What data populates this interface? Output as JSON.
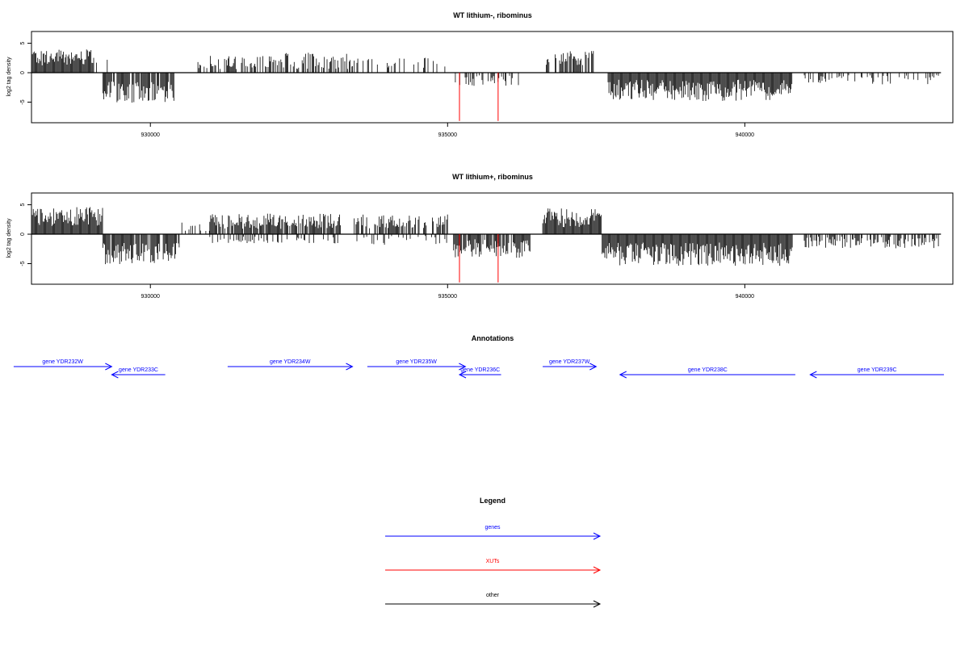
{
  "chart_data": [
    {
      "type": "bar",
      "title": "WT lithium-, ribominus",
      "ylabel": "log2 tag density",
      "xlim": [
        928000,
        943500
      ],
      "ylim": [
        -8.5,
        7
      ],
      "x_ticks": [
        930000,
        935000,
        940000
      ],
      "x_tick_labels": [
        "930000",
        "935000",
        "940000"
      ],
      "y_ticks": [
        -5,
        0,
        5
      ],
      "y_tick_labels": [
        "-5",
        "0",
        "5"
      ],
      "base_color": "#000000",
      "segments": [
        {
          "x0": 928000,
          "x1": 929050,
          "density": 1.0,
          "sign": 1,
          "mean": 2.6,
          "amp": 1.4
        },
        {
          "x0": 929050,
          "x1": 929300,
          "density": 0.3,
          "sign": 1,
          "mean": 1.8,
          "amp": 0.8
        },
        {
          "x0": 929200,
          "x1": 930400,
          "density": 0.9,
          "sign": -1,
          "mean": 3.3,
          "amp": 1.8
        },
        {
          "x0": 930800,
          "x1": 932000,
          "density": 0.45,
          "sign": 1,
          "mean": 1.8,
          "amp": 1.2
        },
        {
          "x0": 932000,
          "x1": 933400,
          "density": 0.5,
          "sign": 1,
          "mean": 2.0,
          "amp": 1.4
        },
        {
          "x0": 933400,
          "x1": 935000,
          "density": 0.25,
          "sign": 1,
          "mean": 1.6,
          "amp": 1.0
        },
        {
          "x0": 935100,
          "x1": 936200,
          "density": 0.35,
          "sign": -1,
          "mean": 1.4,
          "amp": 1.0
        },
        {
          "x0": 936600,
          "x1": 937500,
          "density": 0.7,
          "sign": 1,
          "mean": 2.5,
          "amp": 1.2
        },
        {
          "x0": 937700,
          "x1": 940800,
          "density": 1.0,
          "sign": -1,
          "mean": 3.0,
          "amp": 1.8
        },
        {
          "x0": 941000,
          "x1": 943300,
          "density": 0.3,
          "sign": -1,
          "mean": 1.2,
          "amp": 0.8
        }
      ],
      "red_marks": [
        {
          "x": 935200,
          "y": -8.2
        },
        {
          "x": 935850,
          "y": -8.2
        }
      ]
    },
    {
      "type": "bar",
      "title": "WT lithium+, ribominus",
      "ylabel": "log2 tag density",
      "xlim": [
        928000,
        943500
      ],
      "ylim": [
        -8.5,
        7
      ],
      "x_ticks": [
        930000,
        935000,
        940000
      ],
      "x_tick_labels": [
        "930000",
        "935000",
        "940000"
      ],
      "y_ticks": [
        -5,
        0,
        5
      ],
      "y_tick_labels": [
        "-5",
        "0",
        "5"
      ],
      "base_color": "#000000",
      "segments": [
        {
          "x0": 928000,
          "x1": 929200,
          "density": 1.0,
          "sign": 1,
          "mean": 3.0,
          "amp": 1.6
        },
        {
          "x0": 929200,
          "x1": 930500,
          "density": 0.9,
          "sign": -1,
          "mean": 3.3,
          "amp": 1.8
        },
        {
          "x0": 930500,
          "x1": 931000,
          "density": 0.2,
          "sign": 1,
          "mean": 1.2,
          "amp": 0.8
        },
        {
          "x0": 931000,
          "x1": 933200,
          "density": 0.85,
          "sign": 1,
          "mean": 2.2,
          "amp": 1.3
        },
        {
          "x0": 931000,
          "x1": 933200,
          "density": 0.25,
          "sign": -1,
          "mean": 1.0,
          "amp": 0.6
        },
        {
          "x0": 933400,
          "x1": 935000,
          "density": 0.7,
          "sign": 1,
          "mean": 2.2,
          "amp": 1.2
        },
        {
          "x0": 933400,
          "x1": 935000,
          "density": 0.2,
          "sign": -1,
          "mean": 1.0,
          "amp": 0.8
        },
        {
          "x0": 935100,
          "x1": 936400,
          "density": 0.9,
          "sign": -1,
          "mean": 2.4,
          "amp": 1.6
        },
        {
          "x0": 936600,
          "x1": 937600,
          "density": 1.0,
          "sign": 1,
          "mean": 2.8,
          "amp": 1.6
        },
        {
          "x0": 937600,
          "x1": 940800,
          "density": 1.0,
          "sign": -1,
          "mean": 3.4,
          "amp": 2.0
        },
        {
          "x0": 941000,
          "x1": 943300,
          "density": 0.5,
          "sign": -1,
          "mean": 1.4,
          "amp": 1.0
        }
      ],
      "red_marks": [
        {
          "x": 935200,
          "y": -8.2
        },
        {
          "x": 935850,
          "y": -8.2
        }
      ]
    }
  ],
  "annotations": {
    "title": "Annotations",
    "color": "#0000ff",
    "genes": [
      {
        "label": "gene YDR232W",
        "start": 927700,
        "end": 929350,
        "strand": "+"
      },
      {
        "label": "gene YDR233C",
        "start": 929350,
        "end": 930250,
        "strand": "-"
      },
      {
        "label": "gene YDR234W",
        "start": 931300,
        "end": 933400,
        "strand": "+"
      },
      {
        "label": "gene YDR235W",
        "start": 933650,
        "end": 935300,
        "strand": "+"
      },
      {
        "label": "gene YDR236C",
        "start": 935200,
        "end": 935900,
        "strand": "-"
      },
      {
        "label": "gene YDR237W",
        "start": 936600,
        "end": 937500,
        "strand": "+"
      },
      {
        "label": "gene YDR238C",
        "start": 937900,
        "end": 940850,
        "strand": "-"
      },
      {
        "label": "gene YDR239C",
        "start": 941100,
        "end": 943350,
        "strand": "-"
      }
    ]
  },
  "legend": {
    "title": "Legend",
    "items": [
      {
        "label": "genes",
        "color": "#0000ff"
      },
      {
        "label": "XUTs",
        "color": "#ff0000"
      },
      {
        "label": "other",
        "color": "#000000"
      }
    ]
  }
}
